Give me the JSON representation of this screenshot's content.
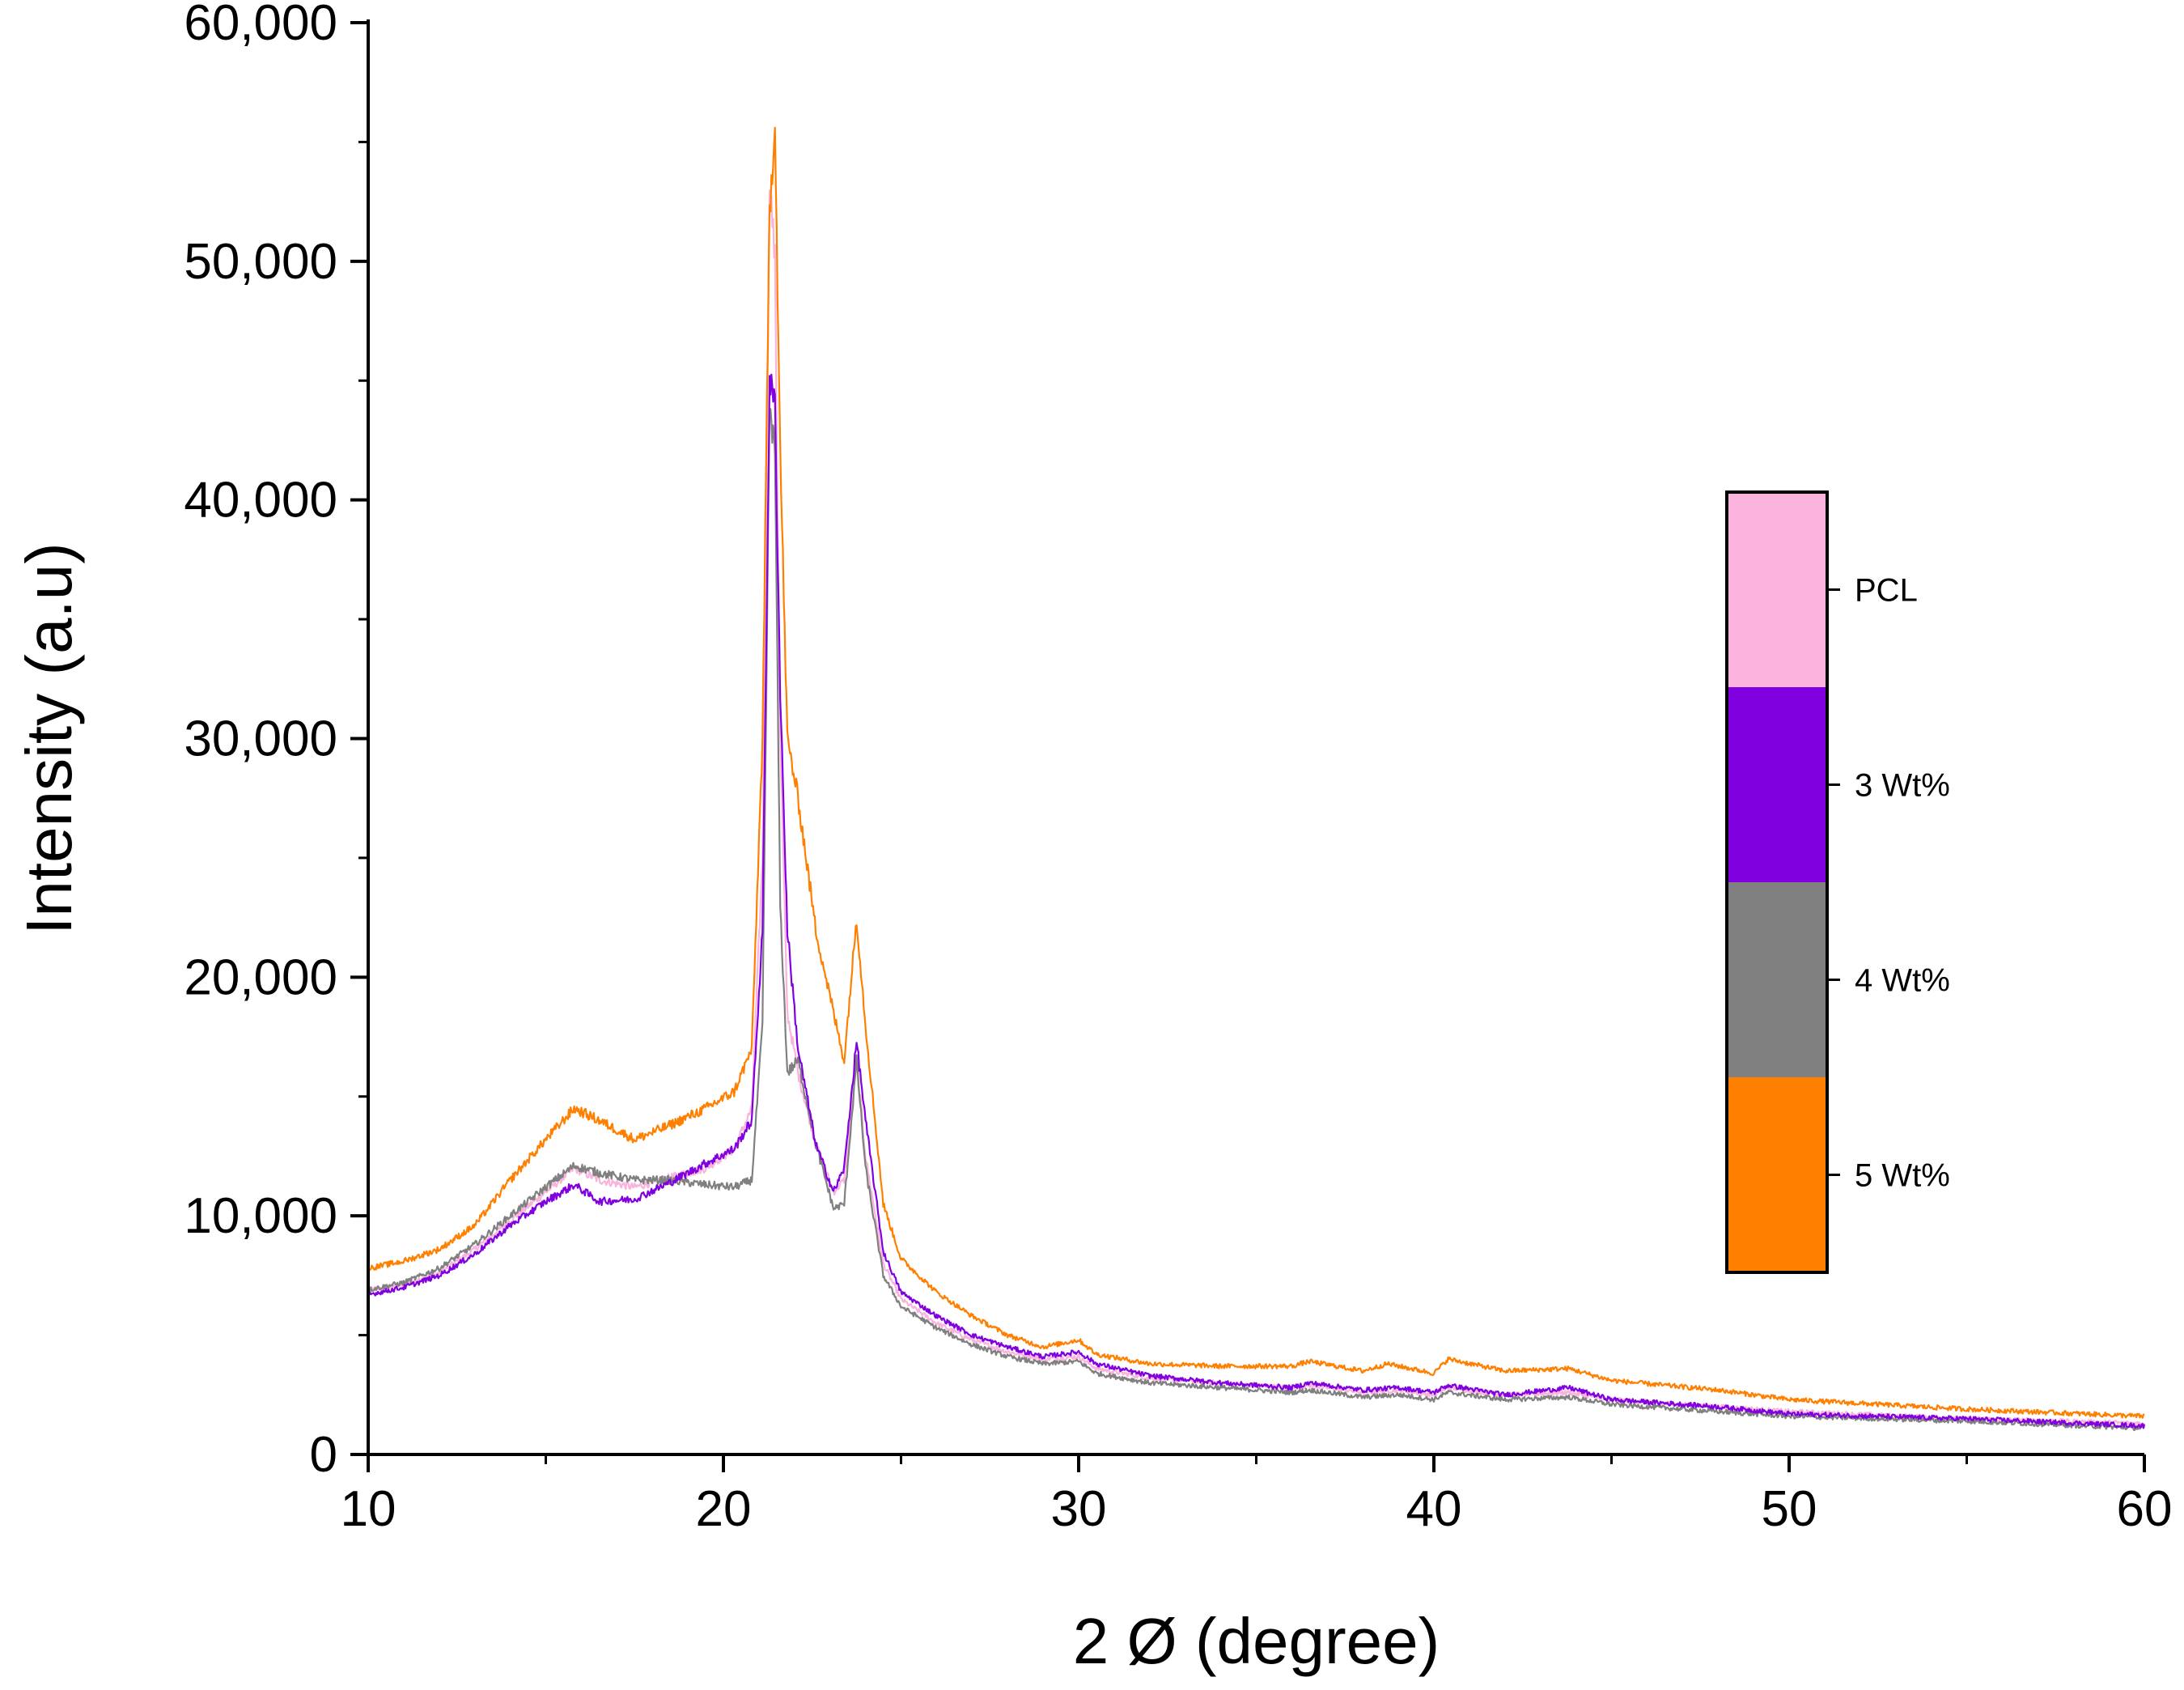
{
  "chart_data": {
    "type": "line",
    "title": "",
    "xlabel": "2 Ø (degree)",
    "ylabel": "Intensity (a.u)",
    "xlim": [
      10,
      60
    ],
    "ylim": [
      0,
      60000
    ],
    "x_ticks": [
      10,
      20,
      30,
      40,
      50,
      60
    ],
    "x_tick_labels": [
      "10",
      "20",
      "30",
      "40",
      "50",
      "60"
    ],
    "y_ticks": [
      0,
      10000,
      20000,
      30000,
      40000,
      50000,
      60000
    ],
    "y_tick_labels": [
      "0",
      "10,000",
      "20,000",
      "30,000",
      "40,000",
      "50,000",
      "60,000"
    ],
    "legend_position": "right",
    "series": [
      {
        "name": "PCL",
        "color": "#f9b3dd",
        "points": [
          [
            10,
            6900
          ],
          [
            11,
            7100
          ],
          [
            12,
            7600
          ],
          [
            13,
            8600
          ],
          [
            14,
            9800
          ],
          [
            15,
            11000
          ],
          [
            15.8,
            12000
          ],
          [
            16.5,
            11500
          ],
          [
            17.5,
            11200
          ],
          [
            18.5,
            11600
          ],
          [
            19.5,
            12000
          ],
          [
            20.3,
            12800
          ],
          [
            20.8,
            14500
          ],
          [
            21.1,
            25000
          ],
          [
            21.3,
            53500
          ],
          [
            21.45,
            50000
          ],
          [
            21.6,
            30000
          ],
          [
            21.8,
            18500
          ],
          [
            22.1,
            16000
          ],
          [
            22.6,
            13000
          ],
          [
            23.1,
            11000
          ],
          [
            23.4,
            11500
          ],
          [
            23.75,
            16500
          ],
          [
            24.0,
            12500
          ],
          [
            24.5,
            8000
          ],
          [
            25,
            6500
          ],
          [
            26,
            5500
          ],
          [
            27,
            4800
          ],
          [
            28,
            4300
          ],
          [
            29,
            4000
          ],
          [
            30,
            4100
          ],
          [
            30.5,
            3600
          ],
          [
            32,
            3200
          ],
          [
            34,
            3000
          ],
          [
            36,
            2800
          ],
          [
            36.5,
            2900
          ],
          [
            38,
            2600
          ],
          [
            39,
            2700
          ],
          [
            40,
            2500
          ],
          [
            40.4,
            2800
          ],
          [
            42,
            2500
          ],
          [
            43.8,
            2600
          ],
          [
            45,
            2300
          ],
          [
            48,
            2000
          ],
          [
            50,
            1800
          ],
          [
            55,
            1500
          ],
          [
            60,
            1300
          ]
        ]
      },
      {
        "name": "3 Wt%",
        "color": "#8000e0",
        "points": [
          [
            10,
            6700
          ],
          [
            11,
            7000
          ],
          [
            12,
            7500
          ],
          [
            13,
            8400
          ],
          [
            14,
            9600
          ],
          [
            15,
            10600
          ],
          [
            15.8,
            11300
          ],
          [
            16.5,
            10600
          ],
          [
            17.5,
            10700
          ],
          [
            18.5,
            11400
          ],
          [
            19.5,
            12200
          ],
          [
            20.3,
            12800
          ],
          [
            20.8,
            14000
          ],
          [
            21.1,
            22000
          ],
          [
            21.3,
            45000
          ],
          [
            21.45,
            44000
          ],
          [
            21.6,
            32000
          ],
          [
            21.8,
            22000
          ],
          [
            22.1,
            17000
          ],
          [
            22.6,
            13000
          ],
          [
            23.1,
            11000
          ],
          [
            23.4,
            12000
          ],
          [
            23.75,
            17300
          ],
          [
            24.0,
            14000
          ],
          [
            24.5,
            8500
          ],
          [
            25,
            6800
          ],
          [
            26,
            5800
          ],
          [
            27,
            5000
          ],
          [
            28,
            4500
          ],
          [
            29,
            4100
          ],
          [
            30,
            4300
          ],
          [
            30.5,
            3800
          ],
          [
            32,
            3300
          ],
          [
            34,
            3000
          ],
          [
            36,
            2800
          ],
          [
            36.5,
            3000
          ],
          [
            38,
            2700
          ],
          [
            39,
            2800
          ],
          [
            40,
            2600
          ],
          [
            40.4,
            2900
          ],
          [
            42,
            2500
          ],
          [
            43.8,
            2800
          ],
          [
            45,
            2300
          ],
          [
            48,
            2000
          ],
          [
            50,
            1700
          ],
          [
            55,
            1500
          ],
          [
            60,
            1200
          ]
        ]
      },
      {
        "name": "4 Wt%",
        "color": "#808080",
        "points": [
          [
            10,
            6900
          ],
          [
            11,
            7200
          ],
          [
            12,
            7800
          ],
          [
            13,
            8800
          ],
          [
            14,
            10000
          ],
          [
            15,
            11200
          ],
          [
            15.8,
            12100
          ],
          [
            16.5,
            11800
          ],
          [
            17.5,
            11500
          ],
          [
            18.5,
            11500
          ],
          [
            19.5,
            11300
          ],
          [
            20.3,
            11200
          ],
          [
            20.8,
            11500
          ],
          [
            21.1,
            18000
          ],
          [
            21.3,
            44000
          ],
          [
            21.45,
            42000
          ],
          [
            21.6,
            23000
          ],
          [
            21.8,
            16000
          ],
          [
            22.1,
            16500
          ],
          [
            22.6,
            13000
          ],
          [
            23.1,
            10300
          ],
          [
            23.4,
            10500
          ],
          [
            23.75,
            16500
          ],
          [
            24.0,
            12000
          ],
          [
            24.5,
            7500
          ],
          [
            25,
            6200
          ],
          [
            26,
            5300
          ],
          [
            27,
            4600
          ],
          [
            28,
            4100
          ],
          [
            29,
            3800
          ],
          [
            30,
            3900
          ],
          [
            30.5,
            3400
          ],
          [
            32,
            3000
          ],
          [
            34,
            2800
          ],
          [
            36,
            2600
          ],
          [
            36.5,
            2700
          ],
          [
            38,
            2400
          ],
          [
            39,
            2500
          ],
          [
            40,
            2300
          ],
          [
            40.4,
            2600
          ],
          [
            42,
            2300
          ],
          [
            43.8,
            2400
          ],
          [
            45,
            2100
          ],
          [
            48,
            1800
          ],
          [
            50,
            1600
          ],
          [
            55,
            1400
          ],
          [
            60,
            1100
          ]
        ]
      },
      {
        "name": "5 Wt%",
        "color": "#ff8000",
        "points": [
          [
            10,
            7800
          ],
          [
            11,
            8100
          ],
          [
            12,
            8600
          ],
          [
            13,
            9600
          ],
          [
            14,
            11500
          ],
          [
            15,
            13200
          ],
          [
            15.8,
            14500
          ],
          [
            16.5,
            14000
          ],
          [
            17.5,
            13200
          ],
          [
            18.5,
            13800
          ],
          [
            19.5,
            14500
          ],
          [
            20.3,
            15200
          ],
          [
            20.8,
            17000
          ],
          [
            21.1,
            30000
          ],
          [
            21.3,
            52000
          ],
          [
            21.45,
            56000
          ],
          [
            21.6,
            42000
          ],
          [
            21.8,
            30000
          ],
          [
            22.1,
            27500
          ],
          [
            22.6,
            22000
          ],
          [
            23.1,
            18500
          ],
          [
            23.4,
            16500
          ],
          [
            23.75,
            22500
          ],
          [
            24.0,
            18000
          ],
          [
            24.5,
            10500
          ],
          [
            25,
            8200
          ],
          [
            26,
            6800
          ],
          [
            27,
            5800
          ],
          [
            28,
            5000
          ],
          [
            29,
            4500
          ],
          [
            30,
            4800
          ],
          [
            30.5,
            4200
          ],
          [
            32,
            3800
          ],
          [
            34,
            3700
          ],
          [
            36,
            3700
          ],
          [
            36.5,
            3900
          ],
          [
            38,
            3500
          ],
          [
            38.7,
            3800
          ],
          [
            40,
            3400
          ],
          [
            40.4,
            4000
          ],
          [
            42,
            3500
          ],
          [
            43.8,
            3600
          ],
          [
            45,
            3100
          ],
          [
            48,
            2700
          ],
          [
            50,
            2300
          ],
          [
            55,
            1900
          ],
          [
            60,
            1600
          ]
        ]
      }
    ]
  }
}
